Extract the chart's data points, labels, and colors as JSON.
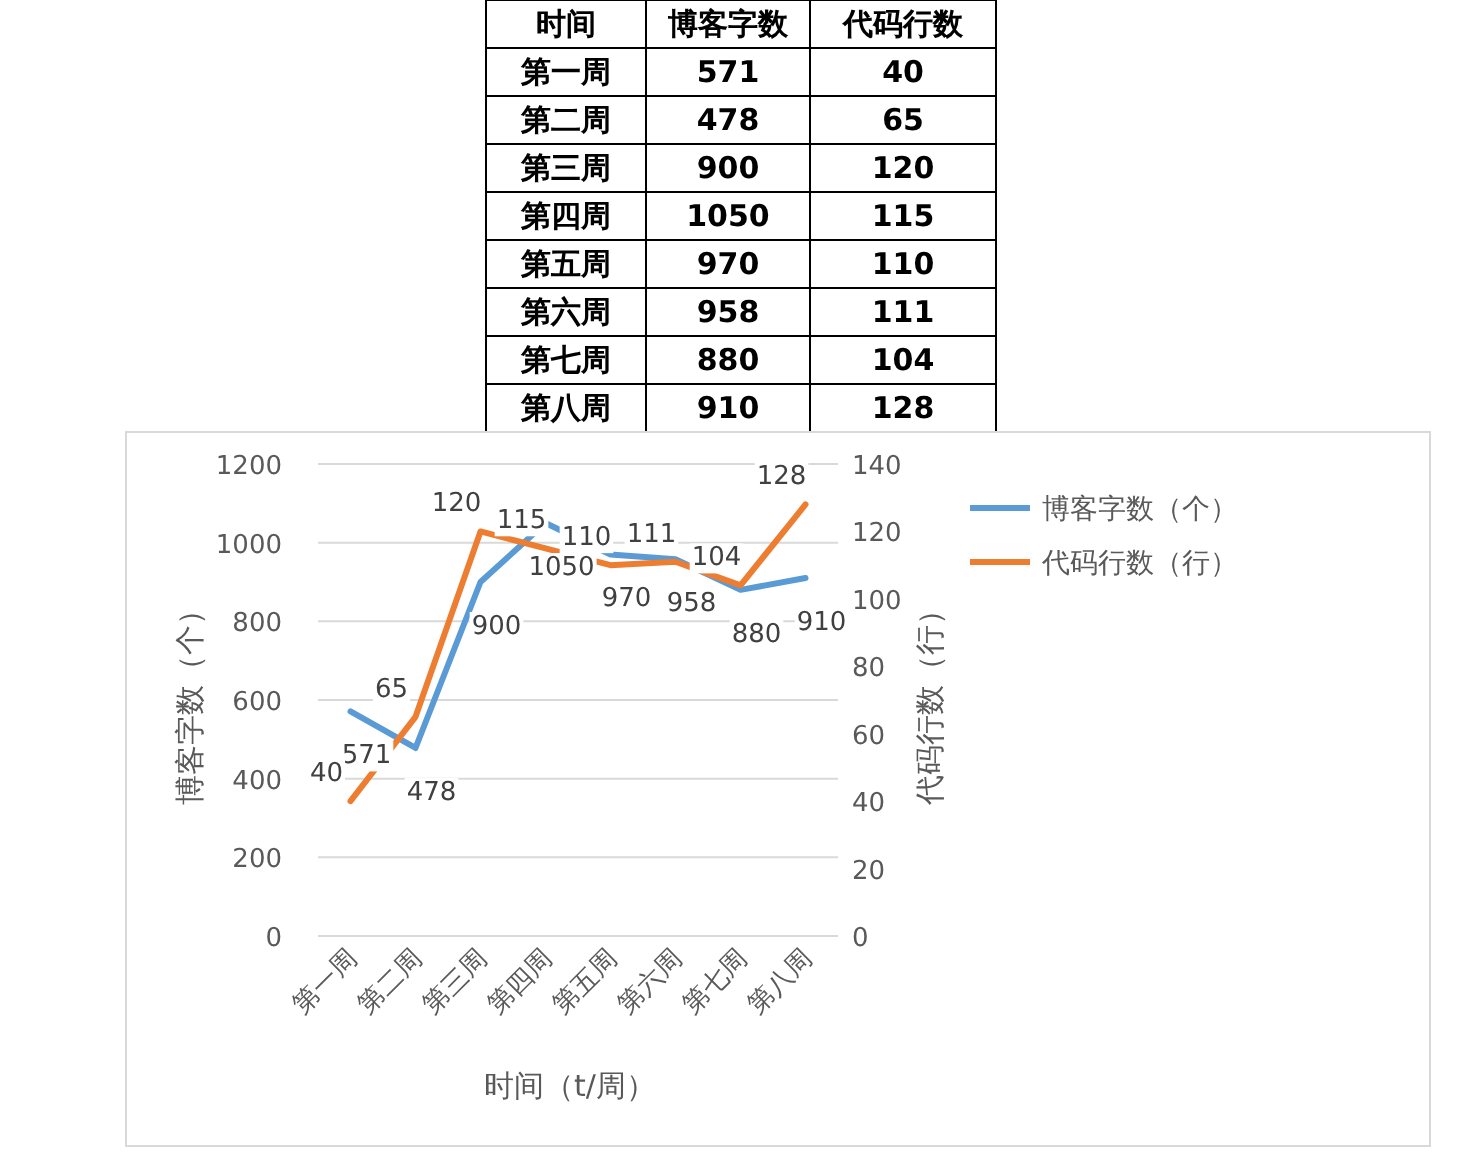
{
  "chart_data": [
    {
      "type": "other",
      "annotations": [
        "时间"
      ],
      "data_labels": true,
      "categories": [
        "第一周",
        "第二周",
        "第三周",
        "第四周",
        "第五周",
        "第六周",
        "第七周",
        "第八周"
      ],
      "series": [
        {
          "name": "博客字数",
          "values": [
            571,
            478,
            900,
            1050,
            970,
            958,
            880,
            910
          ]
        },
        {
          "name": "代码行数",
          "values": [
            40,
            65,
            120,
            115,
            110,
            111,
            104,
            128
          ]
        }
      ]
    },
    {
      "type": "line",
      "xlabel": "时间（t/周）",
      "ylabel": "博客字数（个）",
      "y2label": "代码行数（行）",
      "categories": [
        "第一周",
        "第二周",
        "第三周",
        "第四周",
        "第五周",
        "第六周",
        "第七周",
        "第八周"
      ],
      "series": [
        {
          "name": "博客字数（个）",
          "color": "#5b9bd5",
          "values": [
            571,
            478,
            900,
            1050,
            970,
            958,
            880,
            910
          ]
        },
        {
          "name": "代码行数（行）",
          "color": "#ed7d31",
          "axis": "y2",
          "values": [
            40,
            65,
            120,
            115,
            110,
            111,
            104,
            128
          ]
        }
      ],
      "ylim": [
        0,
        1200
      ],
      "yticks": [
        0,
        200,
        400,
        600,
        800,
        1000,
        1200
      ],
      "y2lim": [
        0,
        140
      ],
      "y2ticks": [
        0,
        20,
        40,
        60,
        80,
        100,
        120,
        140
      ],
      "grid": "y",
      "legend": "right",
      "data_labels": true,
      "marker": "none",
      "line_style": "solid"
    }
  ]
}
